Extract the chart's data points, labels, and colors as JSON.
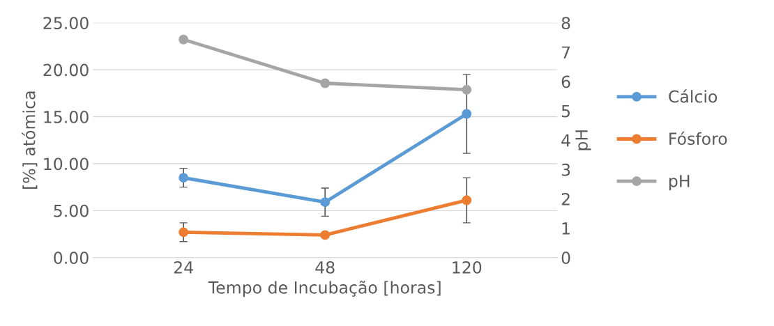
{
  "chart_data": {
    "type": "line",
    "xlabel": "Tempo de Incubação [horas]",
    "ylabel": "[%] atómica",
    "y2label": "pH",
    "categories": [
      "24",
      "48",
      "120"
    ],
    "series": [
      {
        "name": "Cálcio",
        "color": "#5b9bd5",
        "values": [
          8.5,
          5.9,
          15.3
        ],
        "errors": [
          1.0,
          1.5,
          4.2
        ]
      },
      {
        "name": "Fósforo",
        "color": "#ed7d31",
        "values": [
          2.7,
          2.4,
          6.1
        ],
        "errors": [
          1.0,
          null,
          2.4
        ]
      },
      {
        "name": "pH",
        "color": "#a5a5a5",
        "values": [
          7.43,
          5.94,
          5.72
        ],
        "axis": "y2"
      }
    ],
    "ylim": [
      0,
      25
    ],
    "yticks": [
      {
        "value": 0,
        "label": "0.00"
      },
      {
        "value": 5,
        "label": "5.00"
      },
      {
        "value": 10,
        "label": "10.00"
      },
      {
        "value": 15,
        "label": "15.00"
      },
      {
        "value": 20,
        "label": "20.00"
      },
      {
        "value": 25,
        "label": "25.00"
      }
    ],
    "y2lim": [
      0,
      8
    ],
    "y2ticks": [
      0,
      1,
      2,
      3,
      4,
      5,
      6,
      7,
      8
    ],
    "grid": "y",
    "legend": "right",
    "marker": "circle",
    "line_style": "solid"
  }
}
